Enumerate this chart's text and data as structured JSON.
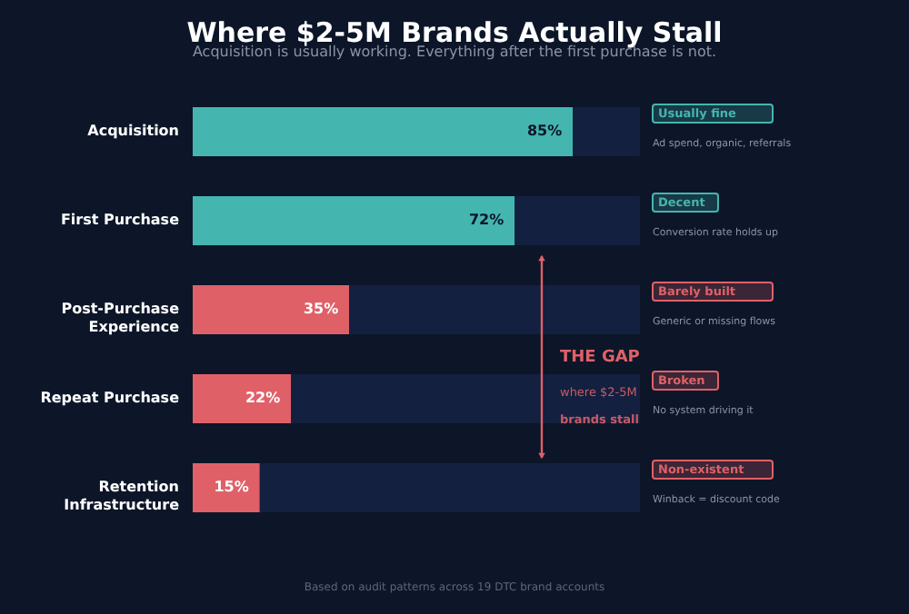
{
  "chart_data": {
    "type": "bar",
    "orientation": "horizontal",
    "stacked": true,
    "title": "Where $2-5M Brands Actually Stall",
    "subtitle": "Acquisition is usually working. Everything after the first purchase is not.",
    "categories": [
      "Acquisition",
      "First Purchase",
      "Post-Purchase Experience",
      "Repeat Purchase",
      "Retention Infrastructure"
    ],
    "series": [
      {
        "values": [
          85,
          72,
          35,
          22,
          15
        ],
        "colors": [
          "#45b5b0",
          "#45b5b0",
          "#e06068",
          "#e06068",
          "#e06068"
        ],
        "value_labels": [
          "85%",
          "72%",
          "35%",
          "22%",
          "15%"
        ]
      },
      {
        "values": [
          15,
          28,
          65,
          78,
          85
        ],
        "color": "#13203f"
      }
    ],
    "xlim": [
      0,
      100
    ],
    "tick_labels": "y",
    "grid": false,
    "annotations": [
      "Usually fine",
      "Ad spend, organic, referrals",
      "Decent",
      "Conversion rate holds up",
      "Barely built",
      "Generic or missing flows",
      "Broken",
      "No system driving it",
      "Non-existent",
      "Winback = discount code",
      "THE GAP",
      "where $2-5M",
      "brands stall",
      "Based on audit patterns across 19 DTC brand accounts"
    ]
  }
}
